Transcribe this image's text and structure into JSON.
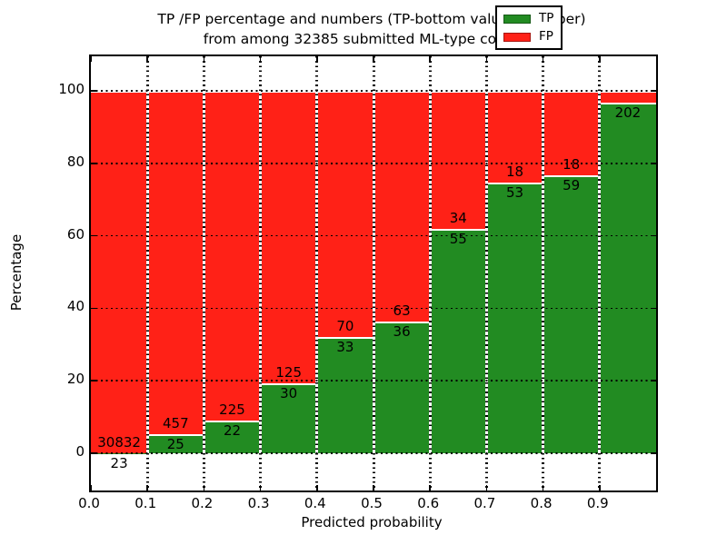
{
  "title": {
    "line1": "TP /FP percentage and numbers (TP-bottom value, FP-upper)",
    "line2": "from among 32385 submitted ML-type contacts"
  },
  "axes": {
    "x_label": "Predicted probability",
    "y_label": "Percentage",
    "x_tick_labels": [
      "0.0",
      "0.1",
      "0.2",
      "0.3",
      "0.4",
      "0.5",
      "0.6",
      "0.7",
      "0.8",
      "0.9"
    ],
    "y_tick_labels": [
      "0",
      "20",
      "40",
      "60",
      "80",
      "100"
    ]
  },
  "legend": {
    "items": [
      {
        "label": "TP",
        "color": "#228b22"
      },
      {
        "label": "FP",
        "color": "#ff2117"
      }
    ]
  },
  "colors": {
    "tp": "#228b22",
    "fp": "#ff2117",
    "grid": "#000000",
    "background": "#ffffff",
    "text": "#000000"
  },
  "chart_data": {
    "type": "bar",
    "stacked": true,
    "normalized": "each bar stacks to 100%",
    "title": "TP /FP percentage and numbers (TP-bottom value, FP-upper) from among 32385 submitted ML-type contacts",
    "xlabel": "Predicted probability",
    "ylabel": "Percentage",
    "total_submitted_contacts": 32385,
    "bins": [
      "0.0-0.1",
      "0.1-0.2",
      "0.2-0.3",
      "0.3-0.4",
      "0.4-0.5",
      "0.5-0.6",
      "0.6-0.7",
      "0.7-0.8",
      "0.8-0.9",
      "0.9-1.0"
    ],
    "series": [
      {
        "name": "TP",
        "counts": [
          23,
          25,
          22,
          30,
          33,
          36,
          55,
          53,
          59,
          202
        ]
      },
      {
        "name": "FP",
        "counts": [
          30832,
          457,
          225,
          125,
          70,
          63,
          34,
          18,
          18,
          null
        ]
      }
    ],
    "tp_percent": [
      0.07,
      5.19,
      8.91,
      19.35,
      32.04,
      36.36,
      61.8,
      74.65,
      76.62,
      96.65
    ],
    "tp_labels": [
      "23",
      "25",
      "22",
      "30",
      "33",
      "36",
      "55",
      "53",
      "59",
      "202"
    ],
    "fp_labels": [
      "30832",
      "457",
      "225",
      "125",
      "70",
      "63",
      "34",
      "18",
      "18",
      ""
    ],
    "ylim_percent": [
      0,
      100
    ],
    "grid": true,
    "grid_style": "dotted",
    "legend_position": "upper right"
  }
}
